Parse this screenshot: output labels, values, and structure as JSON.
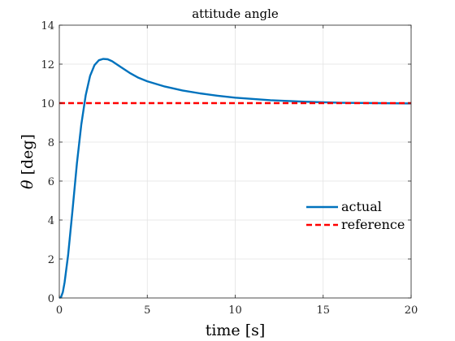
{
  "chart_data": {
    "type": "line",
    "title": "attitude angle",
    "xlabel": "time [s]",
    "ylabel_symbol": "θ",
    "ylabel_unit": "[deg]",
    "xlim": [
      0,
      20
    ],
    "ylim": [
      0,
      14
    ],
    "xticks": [
      0,
      5,
      10,
      15,
      20
    ],
    "yticks": [
      0,
      2,
      4,
      6,
      8,
      10,
      12,
      14
    ],
    "grid": true,
    "legend": "center-right",
    "series": [
      {
        "name": "actual",
        "color": "#0072BD",
        "style": "solid",
        "x": [
          0,
          0.1,
          0.2,
          0.3,
          0.5,
          0.75,
          1.0,
          1.25,
          1.5,
          1.75,
          2.0,
          2.25,
          2.5,
          2.75,
          3.0,
          3.25,
          3.5,
          4.0,
          4.5,
          5.0,
          6.0,
          7.0,
          8.0,
          9.0,
          10.0,
          12.0,
          14.0,
          16.0,
          18.0,
          20.0
        ],
        "y": [
          0,
          0.05,
          0.3,
          0.8,
          2.2,
          4.5,
          6.9,
          8.9,
          10.4,
          11.4,
          11.95,
          12.2,
          12.27,
          12.25,
          12.15,
          12.0,
          11.85,
          11.55,
          11.3,
          11.12,
          10.85,
          10.65,
          10.5,
          10.38,
          10.28,
          10.15,
          10.07,
          10.02,
          10.0,
          9.98
        ]
      },
      {
        "name": "reference",
        "color": "#FF0000",
        "style": "dashed",
        "x": [
          0,
          20
        ],
        "y": [
          10,
          10
        ]
      }
    ]
  }
}
